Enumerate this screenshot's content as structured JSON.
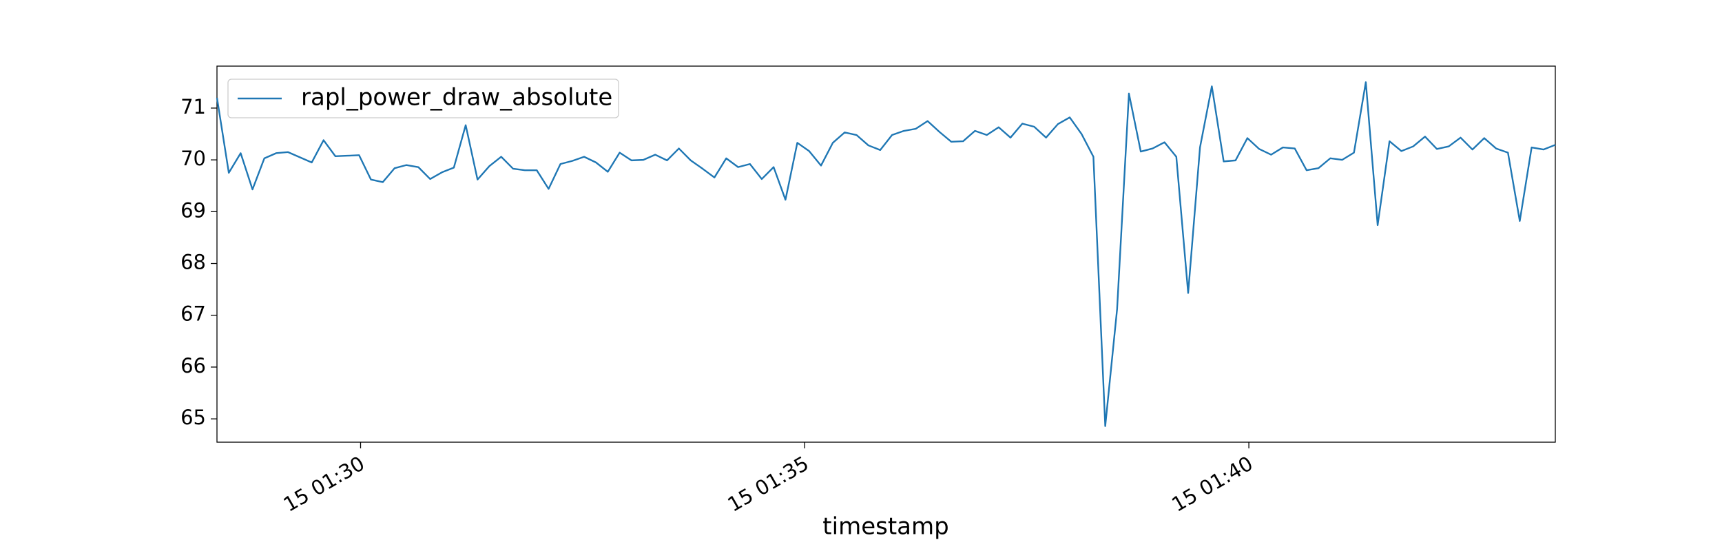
{
  "chart_data": {
    "type": "line",
    "xlabel": "timestamp",
    "x": [
      1703,
      1711,
      1719,
      1727,
      1735,
      1743,
      1751,
      1759,
      1767,
      1775,
      1783,
      1791,
      1799,
      1807,
      1815,
      1823,
      1831,
      1839,
      1847,
      1855,
      1863,
      1871,
      1879,
      1887,
      1895,
      1903,
      1911,
      1919,
      1927,
      1935,
      1943,
      1951,
      1959,
      1967,
      1975,
      1983,
      1991,
      1999,
      2007,
      2015,
      2023,
      2031,
      2039,
      2047,
      2055,
      2063,
      2071,
      2079,
      2087,
      2095,
      2103,
      2111,
      2119,
      2127,
      2135,
      2143,
      2151,
      2159,
      2167,
      2175,
      2183,
      2191,
      2199,
      2207,
      2215,
      2223,
      2231,
      2239,
      2247,
      2255,
      2263,
      2271,
      2279,
      2287,
      2295,
      2303,
      2311,
      2319,
      2327,
      2335,
      2343,
      2351,
      2359,
      2367,
      2375,
      2383,
      2391,
      2399,
      2407,
      2415,
      2423,
      2431,
      2439,
      2447,
      2455,
      2463,
      2471,
      2479,
      2487,
      2495,
      2503,
      2511,
      2519,
      2527,
      2535,
      2543,
      2551,
      2559,
      2567,
      2575,
      2583,
      2591,
      2599,
      2607
    ],
    "series": [
      {
        "name": "rapl_power_draw_absolute",
        "color": "#1f77b4",
        "values": [
          71.2,
          69.75,
          70.13,
          69.43,
          70.03,
          70.13,
          70.15,
          70.05,
          69.95,
          70.38,
          70.07,
          70.08,
          70.09,
          69.62,
          69.57,
          69.84,
          69.9,
          69.86,
          69.63,
          69.76,
          69.85,
          70.67,
          69.62,
          69.88,
          70.06,
          69.83,
          69.8,
          69.8,
          69.44,
          69.92,
          69.98,
          70.06,
          69.95,
          69.77,
          70.14,
          69.99,
          70.0,
          70.1,
          69.99,
          70.22,
          69.99,
          69.83,
          69.66,
          70.03,
          69.86,
          69.92,
          69.63,
          69.86,
          69.23,
          70.33,
          70.17,
          69.89,
          70.33,
          70.53,
          70.48,
          70.28,
          70.19,
          70.48,
          70.56,
          70.6,
          70.75,
          70.54,
          70.35,
          70.36,
          70.56,
          70.48,
          70.63,
          70.43,
          70.7,
          70.64,
          70.43,
          70.69,
          70.82,
          70.5,
          70.06,
          64.86,
          67.12,
          71.28,
          70.16,
          70.22,
          70.34,
          70.06,
          67.43,
          70.24,
          71.42,
          69.97,
          69.99,
          70.42,
          70.21,
          70.1,
          70.24,
          70.22,
          69.8,
          69.84,
          70.03,
          70.0,
          70.14,
          71.5,
          68.74,
          70.36,
          70.17,
          70.26,
          70.45,
          70.21,
          70.26,
          70.43,
          70.2,
          70.42,
          70.22,
          70.14,
          68.82,
          70.24,
          70.2,
          70.29
        ]
      }
    ],
    "xlim": [
      1703,
      2607
    ],
    "xticks": [
      {
        "value": 1800,
        "label": "15 01:30"
      },
      {
        "value": 2100,
        "label": "15 01:35"
      },
      {
        "value": 2400,
        "label": "15 01:40"
      }
    ],
    "ylim": [
      64.55,
      71.81
    ],
    "yticks": [
      65,
      66,
      67,
      68,
      69,
      70,
      71
    ],
    "legend": "upper left",
    "grid": false
  }
}
